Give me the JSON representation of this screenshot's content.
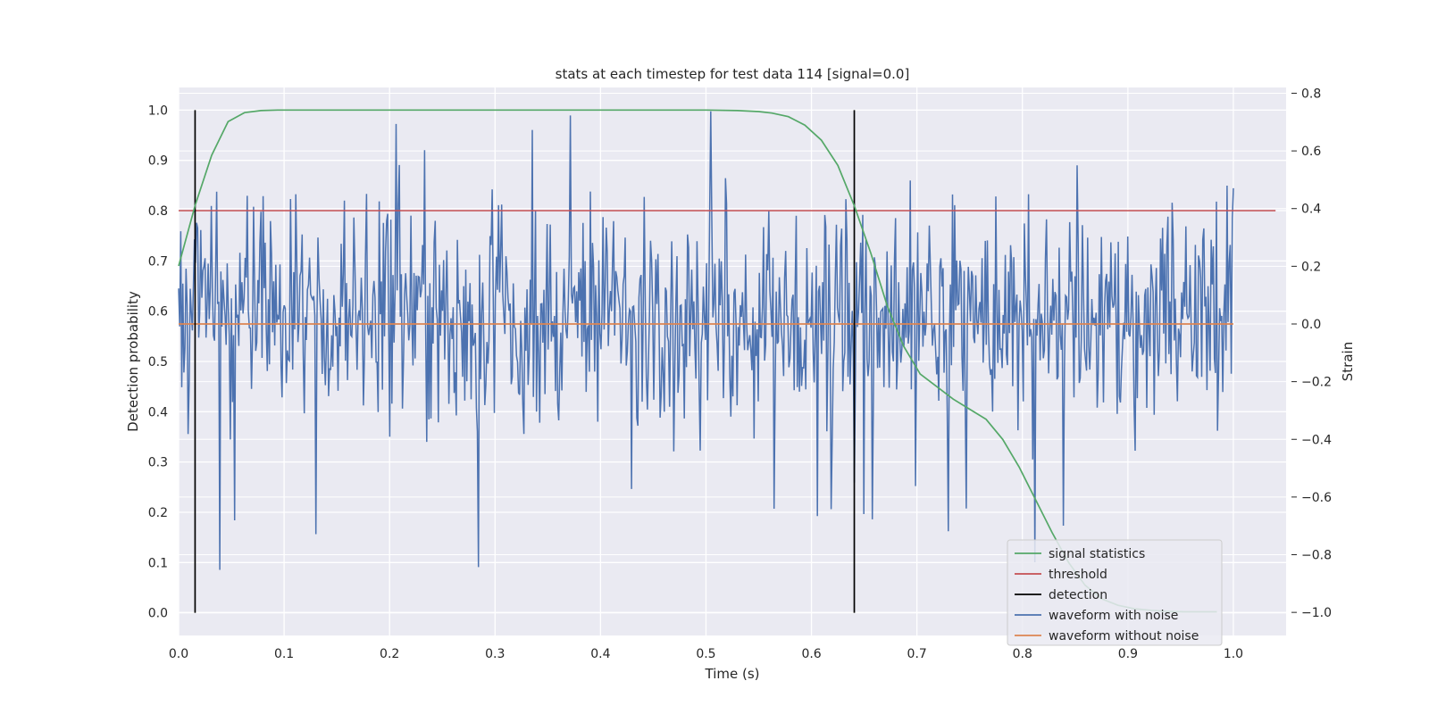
{
  "chart_data": {
    "type": "line",
    "title": "stats at each timestep for test data 114 [signal=0.0]",
    "xlabel": "Time (s)",
    "ylabel": "Detection probability",
    "y2label": "Strain",
    "xlim": [
      0.0,
      1.05
    ],
    "ylim": [
      -0.045,
      1.045
    ],
    "y2lim": [
      -1.08,
      0.82
    ],
    "xticks": [
      "0.0",
      "0.1",
      "0.2",
      "0.3",
      "0.4",
      "0.5",
      "0.6",
      "0.7",
      "0.8",
      "0.9",
      "1.0"
    ],
    "yticks": [
      "0.0",
      "0.1",
      "0.2",
      "0.3",
      "0.4",
      "0.5",
      "0.6",
      "0.7",
      "0.8",
      "0.9",
      "1.0"
    ],
    "y2ticks": [
      "−1.0",
      "−0.8",
      "−0.6",
      "−0.4",
      "−0.2",
      "0.0",
      "0.2",
      "0.4",
      "0.6",
      "0.8"
    ],
    "grid": true,
    "legend_position": "lower-right",
    "series": [
      {
        "name": "signal statistics",
        "axis": "left",
        "color": "#55a868",
        "x": [
          0.0,
          0.0156,
          0.0313,
          0.0469,
          0.0625,
          0.0781,
          0.0938,
          0.1,
          0.2,
          0.3,
          0.4,
          0.5,
          0.53,
          0.55,
          0.5625,
          0.5781,
          0.5938,
          0.6094,
          0.625,
          0.6406,
          0.6563,
          0.6719,
          0.6875,
          0.7031,
          0.7188,
          0.7344,
          0.75,
          0.7656,
          0.7813,
          0.7969,
          0.8125,
          0.8281,
          0.8438,
          0.8594,
          0.875,
          0.8906,
          0.9063,
          0.9219,
          0.9375,
          0.9531,
          0.9688,
          0.9844
        ],
        "values": [
          0.69,
          0.81,
          0.91,
          0.977,
          0.995,
          0.999,
          1.0,
          1.0,
          1.0,
          1.0,
          1.0,
          1.0,
          0.999,
          0.997,
          0.994,
          0.987,
          0.97,
          0.94,
          0.89,
          0.81,
          0.715,
          0.61,
          0.53,
          0.475,
          0.45,
          0.425,
          0.405,
          0.385,
          0.345,
          0.29,
          0.225,
          0.16,
          0.1,
          0.055,
          0.028,
          0.015,
          0.008,
          0.005,
          0.003,
          0.002,
          0.002,
          0.002
        ]
      },
      {
        "name": "threshold",
        "axis": "left",
        "color": "#c44e52",
        "x": [
          0.0,
          1.04
        ],
        "values": [
          0.8,
          0.8
        ]
      },
      {
        "name": "detection",
        "axis": "left",
        "color": "#000000",
        "x_positions": [
          0.0156,
          0.6406
        ],
        "range": [
          0.0,
          1.0
        ]
      },
      {
        "name": "waveform with noise",
        "axis": "right",
        "color": "#4c72b0",
        "x": [
          0.0,
          0.1,
          0.2,
          0.3,
          0.4,
          0.5,
          0.6,
          0.7,
          0.8,
          0.9,
          1.0
        ],
        "values": [
          0.0,
          0.1,
          -0.2,
          0.05,
          -0.1,
          0.0,
          0.1,
          -0.15,
          0.05,
          0.0,
          0.1
        ],
        "note_range": [
          -1.0,
          0.8
        ],
        "num_samples": 1000
      },
      {
        "name": "waveform without noise",
        "axis": "right",
        "color": "#dd8452",
        "x": [
          0.0,
          1.0
        ],
        "values": [
          0.0,
          0.0
        ]
      }
    ]
  }
}
